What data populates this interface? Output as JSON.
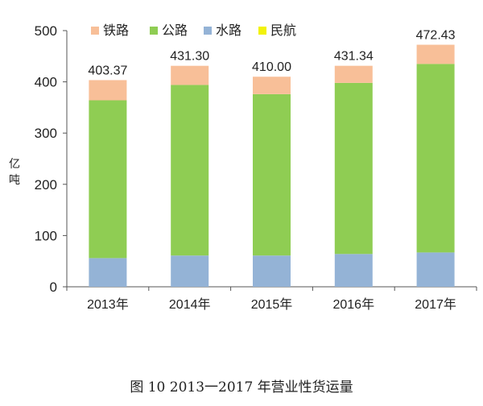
{
  "caption": "图 10    2013一2017 年营业性货运量",
  "chart_data": {
    "type": "bar",
    "stacked": true,
    "title": "",
    "ylabel_lines": [
      "亿",
      "吨"
    ],
    "ylim": [
      0,
      500
    ],
    "yticks": [
      0,
      100,
      200,
      300,
      400,
      500
    ],
    "categories": [
      "2013年",
      "2014年",
      "2015年",
      "2016年",
      "2017年"
    ],
    "totals_labels": [
      "403.37",
      "431.30",
      "410.00",
      "431.34",
      "472.43"
    ],
    "totals": [
      403.37,
      431.3,
      410.0,
      431.34,
      472.43
    ],
    "legend_position": "top",
    "series": [
      {
        "name": "水路",
        "color": "#94b3d6",
        "values": [
          56,
          61,
          61,
          64,
          67
        ]
      },
      {
        "name": "公路",
        "color": "#8fcd53",
        "values": [
          308,
          333,
          315,
          334,
          368
        ]
      },
      {
        "name": "铁路",
        "color": "#f8bf98",
        "values": [
          39.37,
          37.3,
          34.0,
          33.34,
          37.43
        ]
      },
      {
        "name": "民航",
        "color": "#f2f20a",
        "values": [
          0,
          0,
          0,
          0,
          0
        ]
      }
    ],
    "legend_order": [
      "铁路",
      "公路",
      "水路",
      "民航"
    ]
  }
}
